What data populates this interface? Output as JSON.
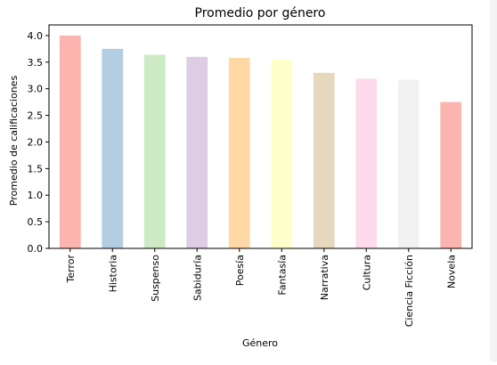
{
  "chart_data": {
    "type": "bar",
    "title": "Promedio por género",
    "xlabel": "Género",
    "ylabel": "Promedio de calificaciones",
    "categories": [
      "Terror",
      "Historia",
      "Suspenso",
      "Sabiduría",
      "Poesía",
      "Fantasía",
      "Narrativa",
      "Cultura",
      "Ciencia Ficción",
      "Novela"
    ],
    "values": [
      4.0,
      3.75,
      3.64,
      3.6,
      3.58,
      3.55,
      3.3,
      3.19,
      3.17,
      2.75
    ],
    "colors": [
      "#fbb4ae",
      "#b3cde3",
      "#ccebc5",
      "#decbe4",
      "#fed9a6",
      "#ffffcc",
      "#e5d8bd",
      "#fddaec",
      "#f2f2f2",
      "#fbb4ae"
    ],
    "ylim": [
      0,
      4.2
    ],
    "yticks": [
      "0.0",
      "0.5",
      "1.0",
      "1.5",
      "2.0",
      "2.5",
      "3.0",
      "3.5",
      "4.0"
    ],
    "grid": false,
    "legend": "none"
  }
}
